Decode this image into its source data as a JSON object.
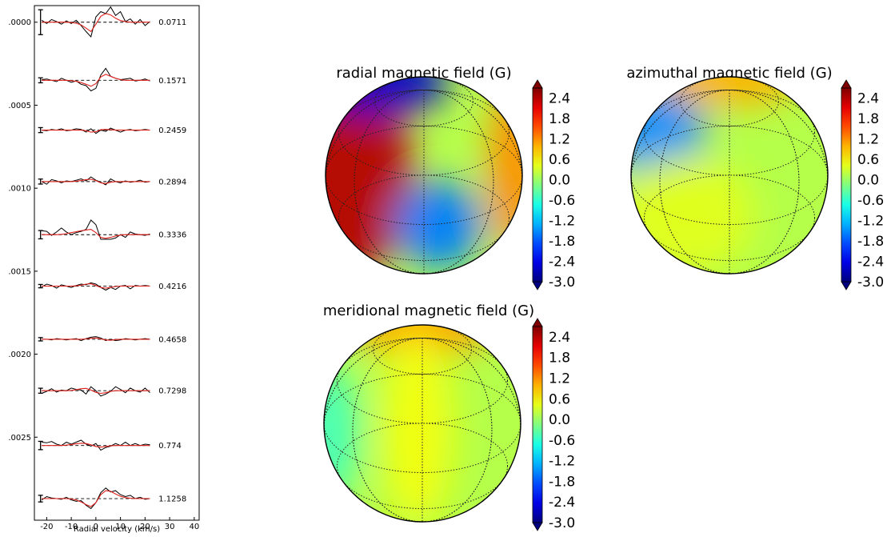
{
  "chart_data": [
    {
      "type": "line",
      "xlabel": "Radial velocity (km/s)",
      "x_ticks": [
        "-20",
        "-10",
        "0",
        "10",
        "20",
        "30",
        "40"
      ],
      "xlim": [
        -25,
        42
      ],
      "y_ticks": [
        ".0000",
        ".0005",
        ".0010",
        ".0015",
        ".0020",
        ".0025"
      ],
      "ylim": [
        -0.0001,
        0.003
      ],
      "series_colors": {
        "observed": "#000000",
        "model": "#e0201b",
        "zero_level": "#000000"
      },
      "velocities": [
        -22,
        -20,
        -18,
        -16,
        -14,
        -12,
        -10,
        -8,
        -6,
        -4,
        -2,
        0,
        2,
        4,
        6,
        8,
        10,
        12,
        14,
        16,
        18,
        20,
        22
      ],
      "profiles": [
        {
          "phase": "0.0711",
          "offset": 0.0,
          "error_bar": 0.00015,
          "observed": [
            0.3,
            -0.2,
            0.4,
            0.1,
            -0.3,
            0.2,
            -0.2,
            0.3,
            -0.5,
            -1.4,
            -2.2,
            0.8,
            1.6,
            1.3,
            2.3,
            1.0,
            1.6,
            0.1,
            0.5,
            -0.3,
            0.4,
            -0.5,
            0.1
          ],
          "model": [
            0,
            0,
            0,
            0,
            0,
            0,
            -0.05,
            -0.15,
            -0.4,
            -0.9,
            -1.4,
            -0.3,
            0.9,
            1.3,
            1.1,
            0.6,
            0.25,
            0.1,
            0,
            0,
            0,
            0,
            0
          ]
        },
        {
          "phase": "0.1571",
          "offset": 0.00035,
          "error_bar": 3e-05,
          "observed": [
            0.1,
            0.2,
            0.0,
            -0.2,
            0.3,
            0.0,
            -0.3,
            -0.1,
            -0.6,
            -0.8,
            -1.6,
            -1.2,
            0.8,
            1.8,
            0.6,
            0.3,
            0.1,
            0.2,
            0.3,
            -0.1,
            0.0,
            0.2,
            -0.1
          ],
          "model": [
            0,
            0,
            0,
            0,
            0,
            0,
            -0.05,
            -0.15,
            -0.35,
            -0.6,
            -0.9,
            -0.5,
            0.5,
            0.9,
            0.6,
            0.3,
            0.1,
            0,
            0,
            0,
            0,
            0,
            0
          ]
        },
        {
          "phase": "0.2459",
          "offset": 0.00065,
          "error_bar": 3e-05,
          "observed": [
            0.0,
            -0.1,
            0.1,
            0.0,
            0.2,
            -0.1,
            0.0,
            0.2,
            0.1,
            -0.3,
            0.2,
            -0.5,
            0.0,
            -0.2,
            0.3,
            0.0,
            -0.3,
            0.0,
            0.1,
            -0.1,
            0.0,
            0.1,
            0.0
          ],
          "model": [
            0,
            0,
            0,
            0,
            0,
            0,
            0,
            0,
            0,
            -0.1,
            -0.3,
            -0.25,
            0.05,
            0.1,
            0.05,
            0,
            0,
            0,
            0,
            0,
            0,
            0,
            0
          ]
        },
        {
          "phase": "0.2894",
          "offset": 0.00096,
          "error_bar": 3e-05,
          "observed": [
            0.0,
            -0.4,
            0.3,
            0.1,
            -0.2,
            0.1,
            0.0,
            0.2,
            0.4,
            0.1,
            0.7,
            0.2,
            -0.1,
            -0.5,
            0.4,
            0.0,
            -0.2,
            0.1,
            -0.1,
            0.0,
            0.2,
            -0.1,
            0.0
          ],
          "model": [
            0,
            0,
            0,
            0,
            0,
            0,
            0,
            0.05,
            0.15,
            0.3,
            0.35,
            0.15,
            -0.2,
            -0.3,
            -0.1,
            0,
            0,
            0,
            0,
            0,
            0,
            0,
            0
          ]
        },
        {
          "phase": "0.3336",
          "offset": 0.00128,
          "error_bar": 5e-05,
          "observed": [
            0.6,
            0.5,
            -0.1,
            0.4,
            1.0,
            0.4,
            0.0,
            0.3,
            0.5,
            0.8,
            2.2,
            1.5,
            -0.7,
            -0.7,
            -0.7,
            -0.5,
            0.0,
            -0.4,
            0.4,
            0.1,
            0.0,
            -0.1,
            0.1
          ],
          "model": [
            0,
            0,
            0,
            0,
            0.05,
            0.15,
            0.3,
            0.45,
            0.6,
            0.7,
            0.8,
            0.3,
            -0.4,
            -0.55,
            -0.4,
            -0.2,
            -0.05,
            0,
            0,
            0,
            0,
            0,
            0
          ]
        },
        {
          "phase": "0.4216",
          "offset": 0.00159,
          "error_bar": 2e-05,
          "observed": [
            -0.1,
            0.3,
            0.1,
            -0.3,
            0.2,
            0.0,
            -0.2,
            0.1,
            0.3,
            0.2,
            0.5,
            0.3,
            -0.2,
            -0.6,
            -0.2,
            -0.5,
            0.0,
            0.1,
            -0.4,
            0.1,
            0.0,
            0.1,
            0.0
          ],
          "model": [
            0,
            0,
            0,
            0,
            0,
            0,
            0,
            0.05,
            0.15,
            0.3,
            0.35,
            0.1,
            -0.2,
            -0.3,
            -0.2,
            -0.05,
            0,
            0,
            0,
            0,
            0,
            0,
            0
          ]
        },
        {
          "phase": "0.4658",
          "offset": 0.00191,
          "error_bar": 2e-05,
          "observed": [
            0.0,
            0.0,
            -0.1,
            0.1,
            0.0,
            -0.1,
            0.0,
            0.1,
            -0.2,
            0.1,
            0.3,
            0.4,
            0.2,
            -0.2,
            0.0,
            -0.2,
            -0.1,
            0.1,
            0.0,
            -0.1,
            0.0,
            0.1,
            0.0
          ],
          "model": [
            0,
            0,
            0,
            0,
            0,
            0,
            0,
            0,
            0,
            0.05,
            0.15,
            0.2,
            0.05,
            -0.1,
            -0.15,
            -0.05,
            0,
            0,
            0,
            0,
            0,
            0,
            0
          ]
        },
        {
          "phase": "0.7298",
          "offset": 0.00222,
          "error_bar": 3e-05,
          "observed": [
            -0.4,
            -0.1,
            0.3,
            -0.2,
            0.1,
            0.0,
            0.4,
            0.2,
            0.1,
            -0.5,
            0.6,
            0.0,
            -0.8,
            -0.5,
            -0.1,
            0.6,
            0.2,
            -0.3,
            0.4,
            0.0,
            -0.2,
            0.4,
            -0.3
          ],
          "model": [
            0,
            0,
            0,
            0,
            0,
            0,
            0.05,
            0.15,
            0.3,
            0.35,
            0.1,
            -0.25,
            -0.4,
            -0.3,
            -0.1,
            0,
            0,
            0,
            0,
            0,
            0,
            0,
            0
          ]
        },
        {
          "phase": "0.774",
          "offset": 0.00255,
          "error_bar": 5e-05,
          "observed": [
            0.5,
            0.4,
            0.6,
            0.2,
            0.0,
            0.5,
            0.2,
            0.5,
            0.8,
            0.2,
            -0.1,
            0.3,
            -0.7,
            -0.3,
            -0.1,
            0.3,
            0.0,
            0.5,
            0.0,
            0.3,
            0.0,
            0.2,
            0.1
          ],
          "model": [
            0,
            0,
            0,
            0,
            0,
            0.05,
            0.15,
            0.25,
            0.35,
            0.3,
            0.1,
            -0.15,
            -0.25,
            -0.15,
            -0.05,
            0,
            0,
            0,
            0,
            0,
            0,
            0,
            0
          ]
        },
        {
          "phase": "1.1258",
          "offset": 0.00287,
          "error_bar": 4e-05,
          "observed": [
            -0.2,
            0.3,
            0.1,
            0.0,
            -0.1,
            0.2,
            -0.2,
            -0.4,
            -0.3,
            -1.0,
            -1.5,
            -0.6,
            0.9,
            1.6,
            1.0,
            1.2,
            0.6,
            0.3,
            0.5,
            0.0,
            0.2,
            -0.1,
            0.0
          ],
          "model": [
            0,
            0,
            0,
            0,
            0,
            0,
            -0.05,
            -0.2,
            -0.5,
            -0.9,
            -1.2,
            -0.6,
            0.6,
            1.2,
            1.1,
            0.7,
            0.35,
            0.15,
            0.05,
            0,
            0,
            0,
            0
          ]
        }
      ]
    },
    {
      "type": "heatmap",
      "title": "radial magnetic field (G)",
      "colorbar": {
        "ticks": [
          "2.4",
          "1.8",
          "1.2",
          "0.6",
          "0.0",
          "-0.6",
          "-1.2",
          "-1.8",
          "-2.4",
          "-3.0"
        ],
        "range": [
          -3.0,
          2.7
        ],
        "colormap": "jet"
      },
      "features": [
        {
          "region": "left-equator",
          "value": 2.4
        },
        {
          "region": "upper-left-pole",
          "value": -2.6
        },
        {
          "region": "center-right-lower",
          "value": -1.6
        },
        {
          "region": "right-limb",
          "value": 1.2
        }
      ]
    },
    {
      "type": "heatmap",
      "title": "azimuthal magnetic field (G)",
      "colorbar": {
        "ticks": [
          "2.4",
          "1.8",
          "1.2",
          "0.6",
          "0.0",
          "-0.6",
          "-1.2",
          "-1.8",
          "-2.4",
          "-3.0"
        ],
        "range": [
          -3.0,
          2.7
        ],
        "colormap": "jet"
      },
      "features": [
        {
          "region": "upper-left",
          "value": -1.5
        },
        {
          "region": "top-pole",
          "value": 1.0
        },
        {
          "region": "lower-left",
          "value": 0.4
        }
      ]
    },
    {
      "type": "heatmap",
      "title": "meridional magnetic field (G)",
      "colorbar": {
        "ticks": [
          "2.4",
          "1.8",
          "1.2",
          "0.6",
          "0.0",
          "-0.6",
          "-1.2",
          "-1.8",
          "-2.4",
          "-3.0"
        ],
        "range": [
          -3.0,
          2.7
        ],
        "colormap": "jet"
      },
      "features": [
        {
          "region": "top-pole",
          "value": 1.1
        },
        {
          "region": "central-meridian",
          "value": 0.5
        },
        {
          "region": "left-limb",
          "value": -0.5
        }
      ]
    }
  ]
}
